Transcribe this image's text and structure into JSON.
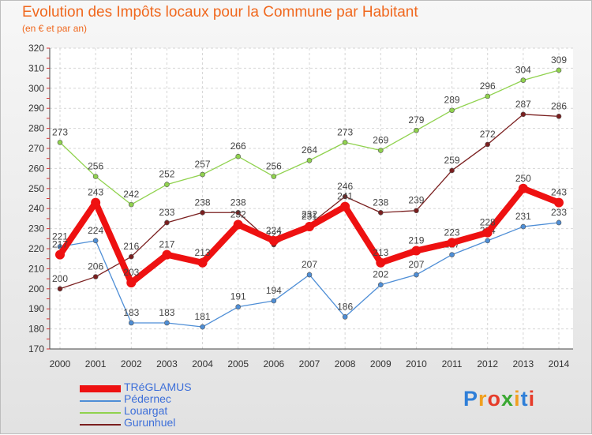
{
  "title": "Evolution des Impôts locaux pour la Commune par Habitant",
  "subtitle": "(en € et par an)",
  "logo": "Proxiti",
  "chart_data": {
    "type": "line",
    "title": "Evolution des Impôts locaux pour la Commune par Habitant",
    "ylabel": "(en € et par an)",
    "xlabel": "",
    "ylim": [
      170,
      320
    ],
    "y_ticks": [
      170,
      180,
      190,
      200,
      210,
      220,
      230,
      240,
      250,
      260,
      270,
      280,
      290,
      300,
      310,
      320
    ],
    "grid": true,
    "legend_position": "bottom-left",
    "categories": [
      "2000",
      "2001",
      "2002",
      "2003",
      "2004",
      "2005",
      "2006",
      "2007",
      "2008",
      "2009",
      "2010",
      "2011",
      "2012",
      "2013",
      "2014"
    ],
    "series": [
      {
        "name": "Pédernec",
        "color": "#4e8ed6",
        "values": [
          221,
          224,
          183,
          183,
          181,
          191,
          194,
          207,
          186,
          202,
          207,
          217,
          224,
          231,
          233
        ]
      },
      {
        "name": "Louargat",
        "color": "#90d24e",
        "values": [
          273,
          256,
          242,
          252,
          257,
          266,
          256,
          264,
          273,
          269,
          279,
          289,
          296,
          304,
          309
        ]
      },
      {
        "name": "Gurunhuel",
        "color": "#7a1f1f",
        "values": [
          200,
          206,
          216,
          233,
          238,
          238,
          222,
          232,
          246,
          238,
          239,
          259,
          272,
          287,
          286
        ]
      },
      {
        "name": "TRéGLAMUS",
        "color": "#ee1111",
        "values": [
          217,
          243,
          203,
          217,
          213,
          232,
          224,
          231,
          241,
          213,
          219,
          223,
          228,
          250,
          243
        ]
      }
    ]
  }
}
